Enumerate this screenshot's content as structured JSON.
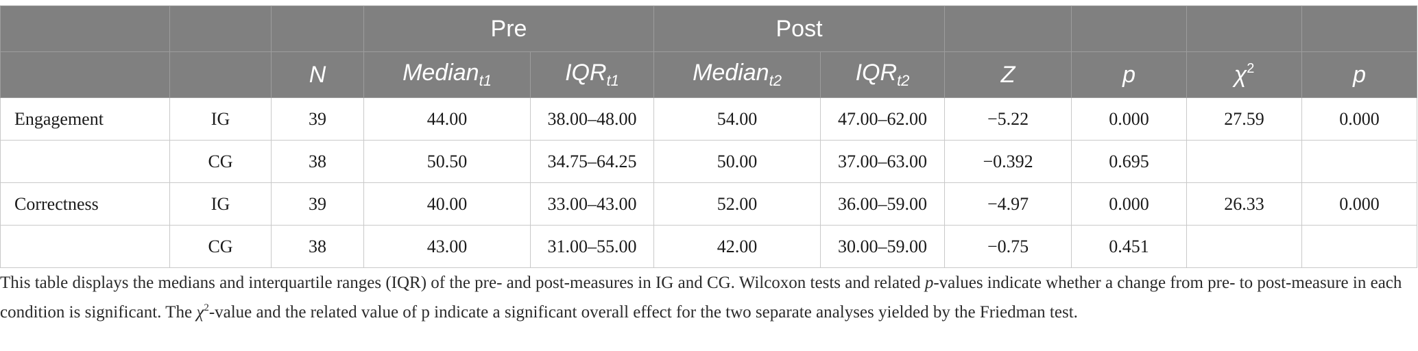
{
  "table": {
    "group_headers": {
      "pre": "Pre",
      "post": "Post"
    },
    "column_headers": {
      "n": "N",
      "median_pre": "Median",
      "median_pre_sub": "t1",
      "iqr_pre": "IQR",
      "iqr_pre_sub": "t1",
      "median_post": "Median",
      "median_post_sub": "t2",
      "iqr_post": "IQR",
      "iqr_post_sub": "t2",
      "z": "Z",
      "p_wilcoxon": "p",
      "chi": "χ",
      "chi_sup": "2",
      "p_friedman": "p"
    },
    "rows": [
      {
        "measure": "Engagement",
        "group": "IG",
        "n": "39",
        "median_t1": "44.00",
        "iqr_t1": "38.00–48.00",
        "median_t2": "54.00",
        "iqr_t2": "47.00–62.00",
        "z": "−5.22",
        "p": "0.000",
        "chi2": "27.59",
        "p2": "0.000"
      },
      {
        "measure": "",
        "group": "CG",
        "n": "38",
        "median_t1": "50.50",
        "iqr_t1": "34.75–64.25",
        "median_t2": "50.00",
        "iqr_t2": "37.00–63.00",
        "z": "−0.392",
        "p": "0.695",
        "chi2": "",
        "p2": ""
      },
      {
        "measure": "Correctness",
        "group": "IG",
        "n": "39",
        "median_t1": "40.00",
        "iqr_t1": "33.00–43.00",
        "median_t2": "52.00",
        "iqr_t2": "36.00–59.00",
        "z": "−4.97",
        "p": "0.000",
        "chi2": "26.33",
        "p2": "0.000"
      },
      {
        "measure": "",
        "group": "CG",
        "n": "38",
        "median_t1": "43.00",
        "iqr_t1": "31.00–55.00",
        "median_t2": "42.00",
        "iqr_t2": "30.00–59.00",
        "z": "−0.75",
        "p": "0.451",
        "chi2": "",
        "p2": ""
      }
    ]
  },
  "caption": {
    "part1": "This table displays the medians and interquartile ranges (IQR) of the pre- and post-measures in IG and CG. Wilcoxon tests and related ",
    "p_italic": "p",
    "part2": "-values indicate whether a change from pre- to post-measure in each condition is significant. The ",
    "chi": "χ",
    "chi_sup": "2",
    "part3": "-value and the related value of p indicate a significant overall effect for the two separate analyses yielded by the Friedman test."
  },
  "colors": {
    "header_bg": "#808080",
    "header_text": "#ffffff",
    "border": "#c9c9c9"
  }
}
